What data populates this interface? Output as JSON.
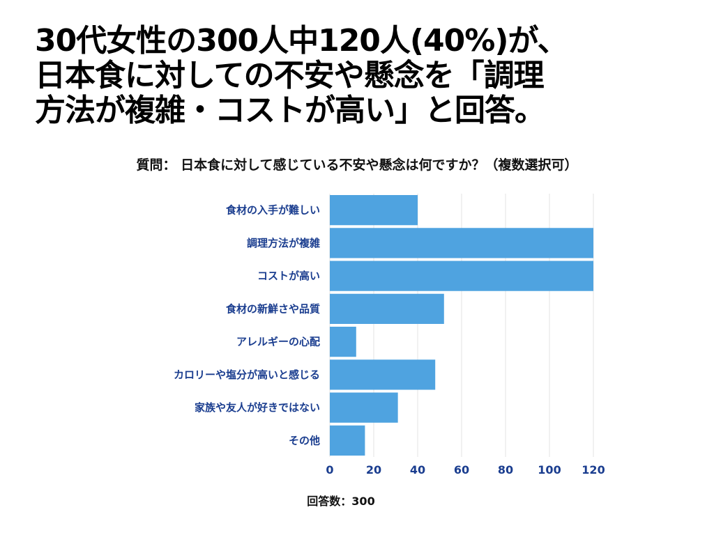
{
  "headline": {
    "line1": "30代女性の300人中120人(40%)が、",
    "line2": " 日本食に対しての不安や懸念を「調理",
    "line3": "方法が複雑・コストが高い」と回答。"
  },
  "chart_data": {
    "type": "bar",
    "orientation": "horizontal",
    "title": "質問： 日本食に対して感じている不安や懸念は何ですか？（複数選択可）",
    "categories": [
      "食材の入手が難しい",
      "調理方法が複雑",
      "コストが高い",
      "食材の新鮮さや品質",
      "アレルギーの心配",
      "カロリーや塩分が高いと感じる",
      "家族や友人が好きではない",
      "その他"
    ],
    "values": [
      40,
      120,
      120,
      52,
      12,
      48,
      31,
      16
    ],
    "xlim": [
      0,
      120
    ],
    "xticks": [
      0,
      20,
      40,
      60,
      80,
      100,
      120
    ],
    "grid": true,
    "bar_color": "#4fa3e0",
    "label_color": "#1a3d8f",
    "footer": "回答数：300"
  }
}
